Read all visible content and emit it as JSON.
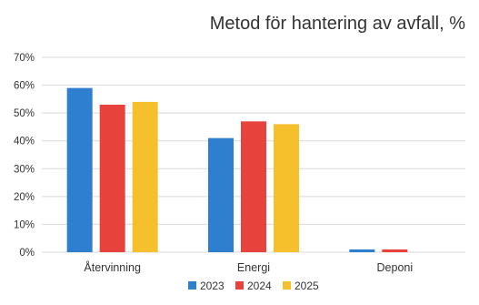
{
  "chart_data": {
    "type": "bar",
    "title": "Metod för hantering av avfall, %",
    "xlabel": "",
    "ylabel": "",
    "categories": [
      "Återvinning",
      "Energi",
      "Deponi"
    ],
    "series": [
      {
        "name": "2023",
        "values": [
          59,
          41,
          1
        ],
        "color": "#2f7fd0"
      },
      {
        "name": "2024",
        "values": [
          53,
          47,
          1
        ],
        "color": "#e8423c"
      },
      {
        "name": "2025",
        "values": [
          54,
          46,
          0
        ],
        "color": "#f5c02c"
      }
    ],
    "ylim": [
      0,
      70
    ],
    "yticks": [
      {
        "value": 0,
        "label": "0%"
      },
      {
        "value": 10,
        "label": "10%"
      },
      {
        "value": 20,
        "label": "20%"
      },
      {
        "value": 30,
        "label": "30%"
      },
      {
        "value": 40,
        "label": "40%"
      },
      {
        "value": 50,
        "label": "50%"
      },
      {
        "value": 60,
        "label": "60%"
      },
      {
        "value": 70,
        "label": "70%"
      }
    ],
    "grid": true,
    "legend": "bottom",
    "gridline_color": "#d9d9d9"
  }
}
